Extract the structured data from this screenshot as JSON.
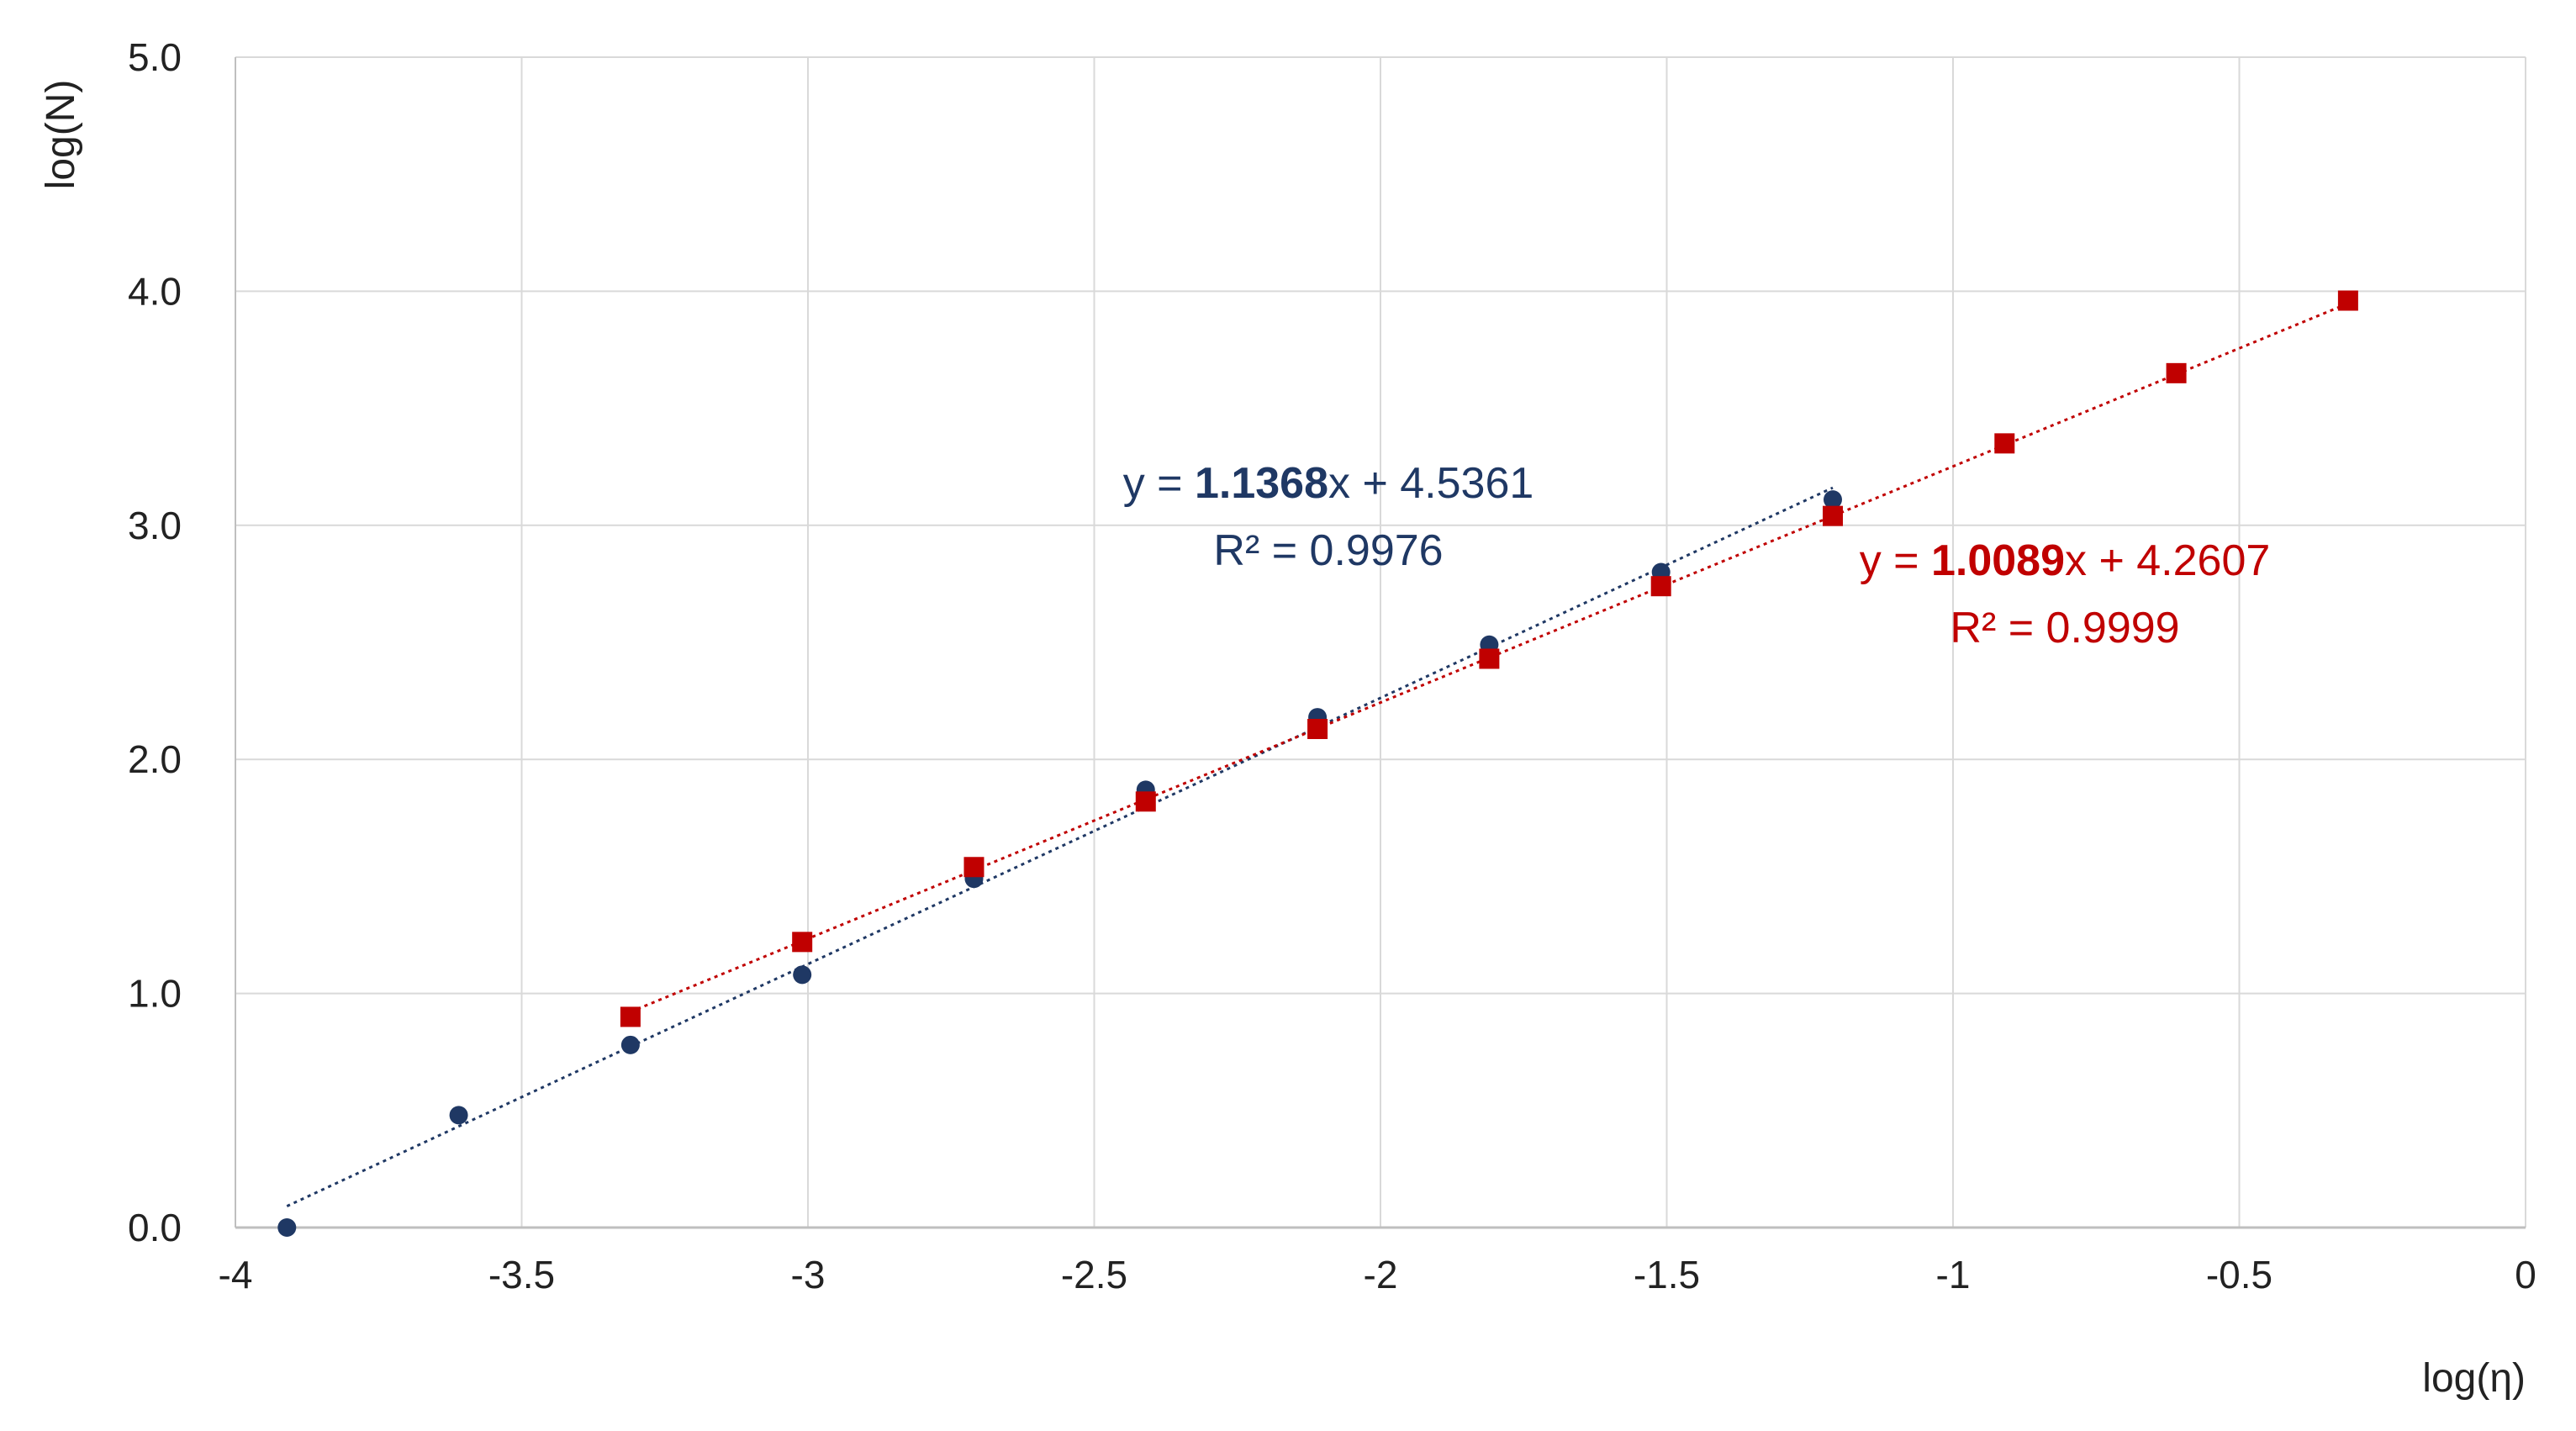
{
  "chart_data": {
    "type": "scatter",
    "xlabel": "log(η)",
    "ylabel": "log(N)",
    "xlim": [
      -4,
      0
    ],
    "ylim": [
      0,
      5
    ],
    "xticks": [
      -4,
      -3.5,
      -3,
      -2.5,
      -2,
      -1.5,
      -1,
      -0.5,
      0
    ],
    "yticks": [
      0,
      1,
      2,
      3,
      4,
      5
    ],
    "grid": true,
    "series": [
      {
        "marker": "circle",
        "color": "#1f3864",
        "x": [
          -3.91,
          -3.61,
          -3.31,
          -3.01,
          -2.71,
          -2.41,
          -2.11,
          -1.81,
          -1.51,
          -1.21
        ],
        "y": [
          0.0,
          0.48,
          0.78,
          1.08,
          1.49,
          1.87,
          2.18,
          2.49,
          2.8,
          3.11
        ],
        "trendline": {
          "slope": 1.1368,
          "intercept": 4.5361,
          "x_range": [
            -3.91,
            -1.21
          ]
        },
        "equation": {
          "prefix": "y = ",
          "slope": "1.1368",
          "suffix": "x + 4.5361",
          "r2": "R² = 0.9976"
        }
      },
      {
        "marker": "square",
        "color": "#c00000",
        "x": [
          -3.31,
          -3.01,
          -2.71,
          -2.41,
          -2.11,
          -1.81,
          -1.51,
          -1.21,
          -0.91,
          -0.61,
          -0.31
        ],
        "y": [
          0.9,
          1.22,
          1.54,
          1.82,
          2.13,
          2.43,
          2.74,
          3.04,
          3.35,
          3.65,
          3.96
        ],
        "trendline": {
          "slope": 1.0089,
          "intercept": 4.2607,
          "x_range": [
            -3.31,
            -0.31
          ]
        },
        "equation": {
          "prefix": "y = ",
          "slope": "1.0089",
          "suffix": "x + 4.2607",
          "r2": "R² = 0.9999"
        }
      }
    ]
  }
}
